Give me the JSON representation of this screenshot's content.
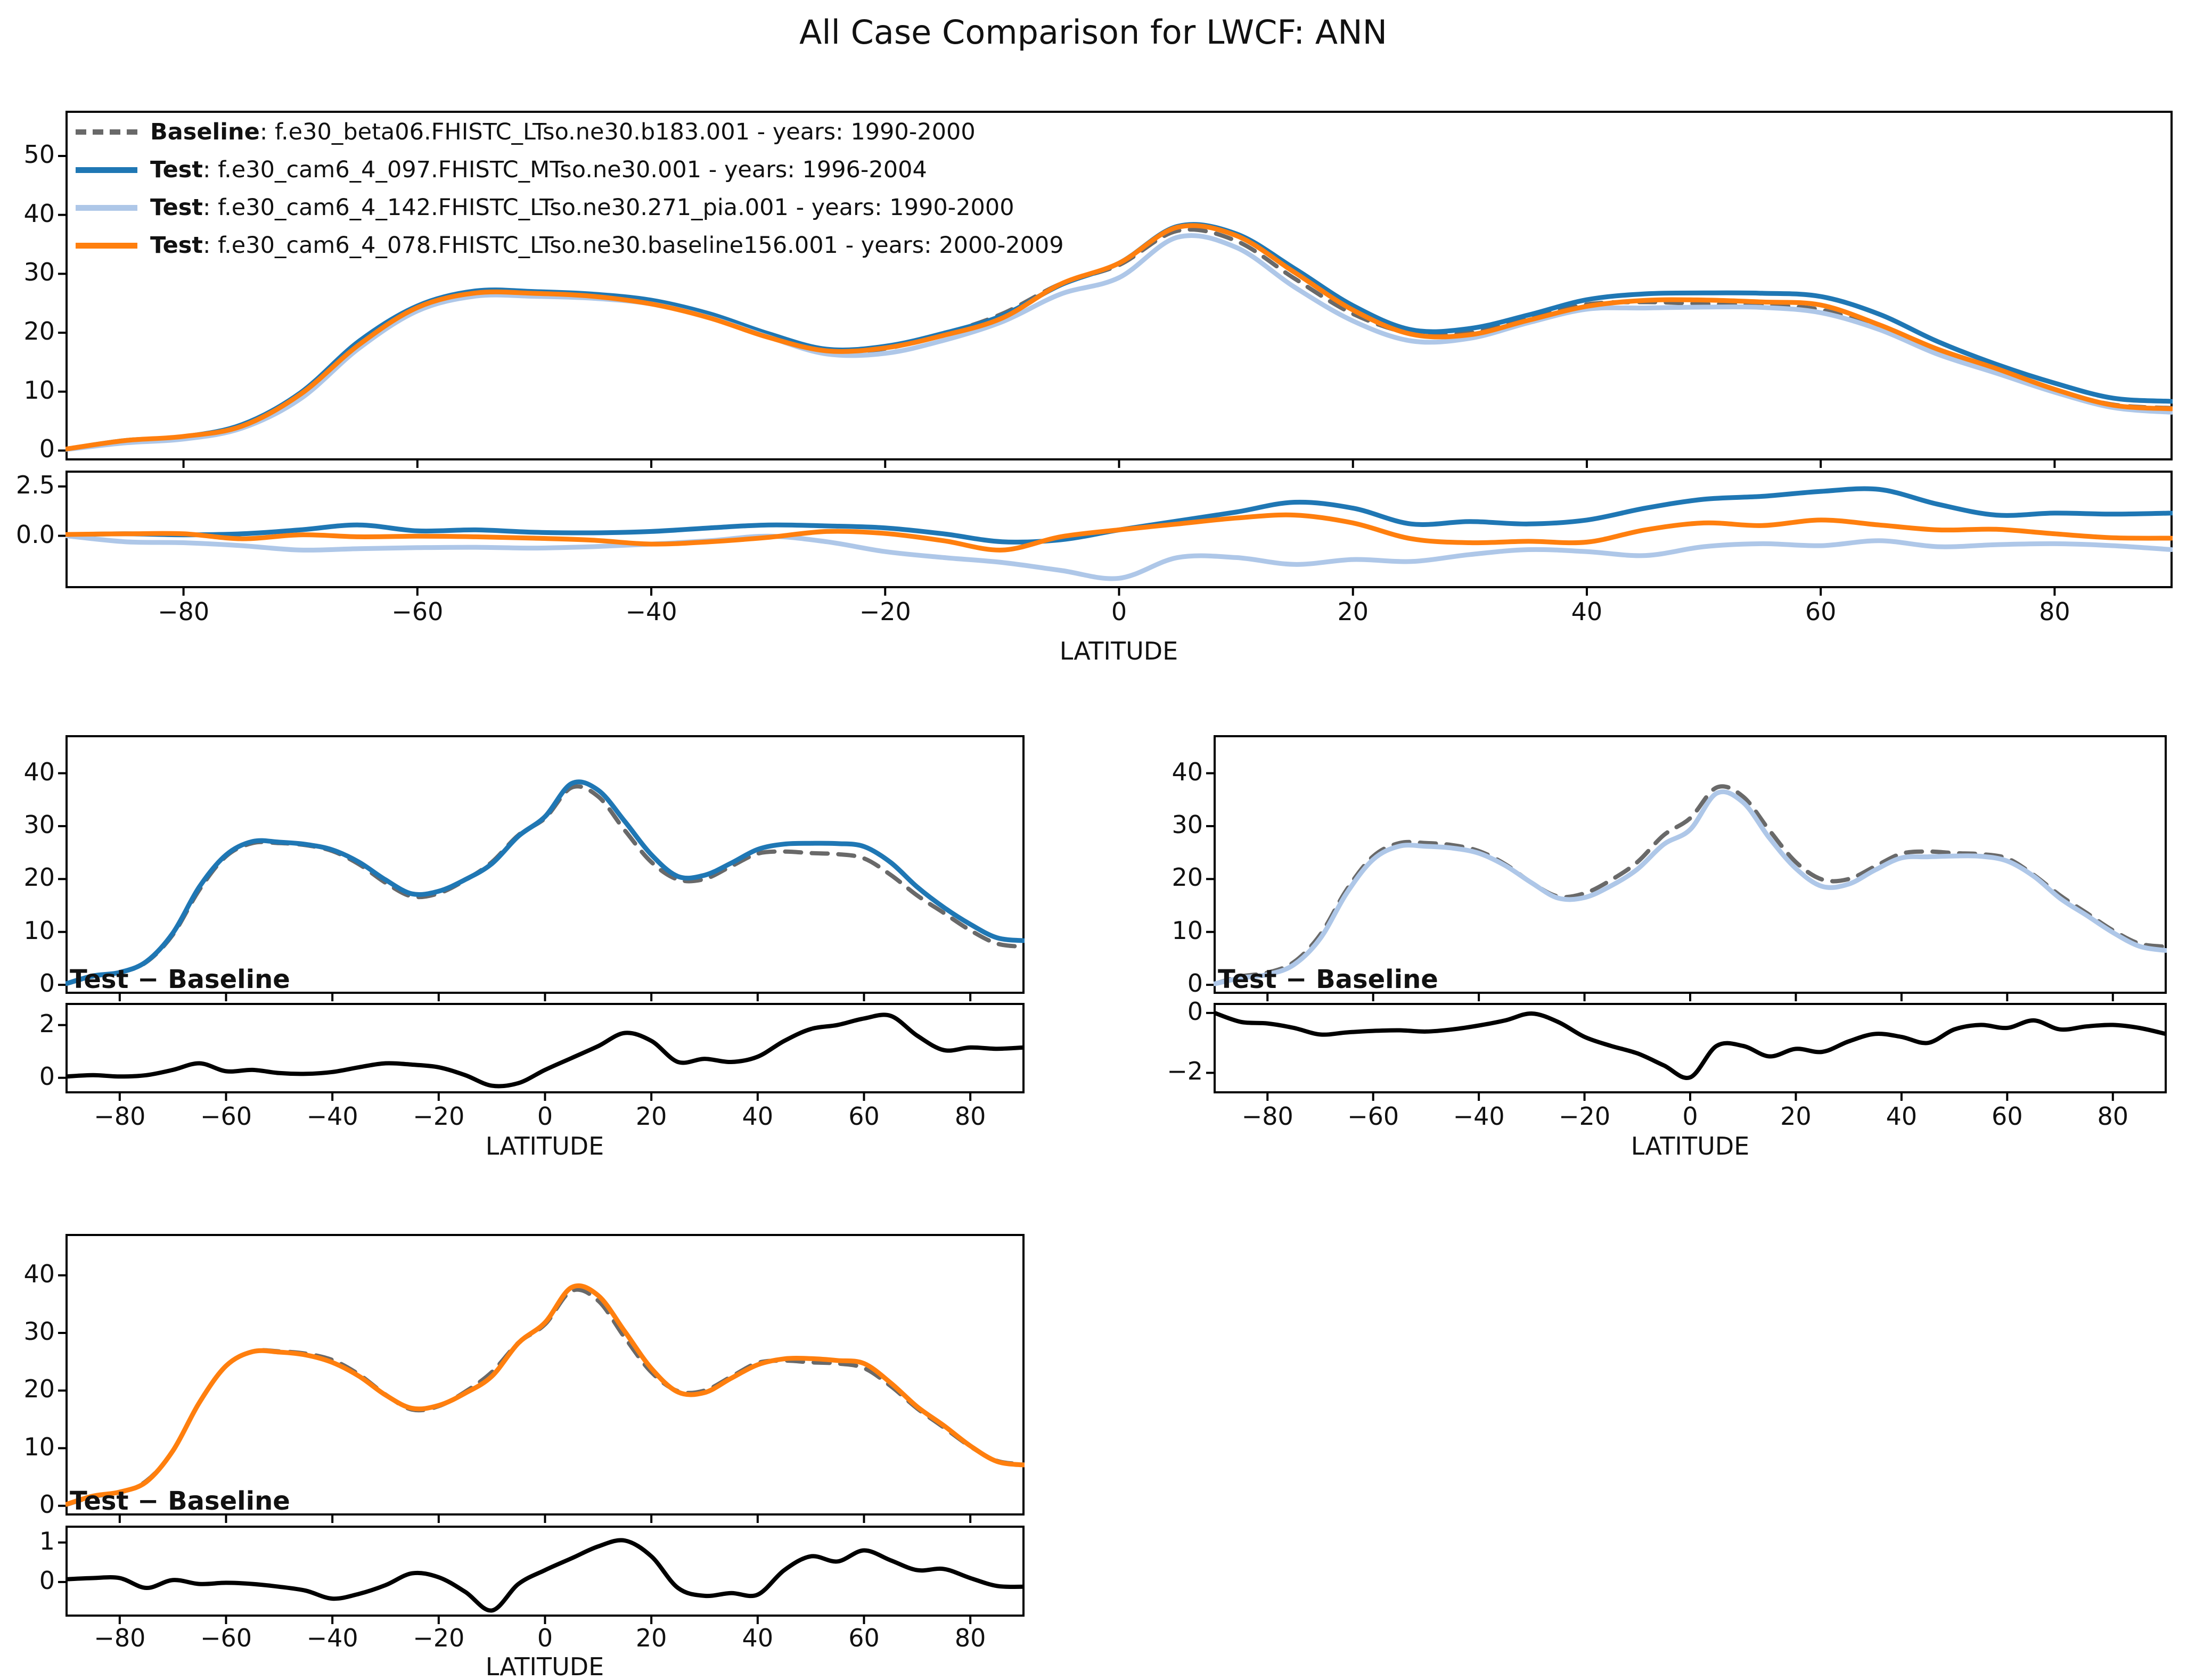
{
  "title": "All Case Comparison for LWCF: ANN",
  "axis": {
    "xlabel": "LATITUDE"
  },
  "diff_label": "Test − Baseline",
  "colors": {
    "baseline": "#696969",
    "test1": "#1f77b4",
    "test2": "#aec7e8",
    "test3": "#ff7f0e",
    "diff_black": "#000000"
  },
  "legend": {
    "items": [
      {
        "series": "baseline",
        "bold": "Baseline",
        "text": ": f.e30_beta06.FHISTC_LTso.ne30.b183.001 - years: 1990-2000",
        "style": "dashed"
      },
      {
        "series": "test1",
        "bold": "Test",
        "text": ": f.e30_cam6_4_097.FHISTC_MTso.ne30.001 - years: 1996-2004",
        "style": "solid"
      },
      {
        "series": "test2",
        "bold": "Test",
        "text": ": f.e30_cam6_4_142.FHISTC_LTso.ne30.271_pia.001 - years: 1990-2000",
        "style": "solid"
      },
      {
        "series": "test3",
        "bold": "Test",
        "text": ": f.e30_cam6_4_078.FHISTC_LTso.ne30.baseline156.001 - years: 2000-2009",
        "style": "solid"
      }
    ]
  },
  "chart_data": {
    "type": "line",
    "title": "All Case Comparison for LWCF: ANN",
    "xlabel": "LATITUDE",
    "xlim": [
      -90,
      90
    ],
    "xticks": [
      -80,
      -60,
      -40,
      -20,
      0,
      20,
      40,
      60,
      80
    ],
    "xtick_labels": [
      "−80",
      "−60",
      "−40",
      "−20",
      "0",
      "20",
      "40",
      "60",
      "80"
    ],
    "x": [
      -90,
      -85,
      -80,
      -75,
      -70,
      -65,
      -60,
      -55,
      -50,
      -45,
      -40,
      -35,
      -30,
      -25,
      -20,
      -15,
      -10,
      -5,
      0,
      5,
      10,
      15,
      20,
      25,
      30,
      35,
      40,
      45,
      50,
      55,
      60,
      65,
      70,
      75,
      80,
      85,
      90
    ],
    "series": {
      "baseline": {
        "label": "Baseline: f.e30_beta06.FHISTC_LTso.ne30.b183.001 - years: 1990-2000",
        "color": "#696969",
        "dash": true,
        "values": [
          0.2,
          1.6,
          2.3,
          4.3,
          9.5,
          18.0,
          24.3,
          26.8,
          26.8,
          26.4,
          25.3,
          22.8,
          19.3,
          16.7,
          17.3,
          19.8,
          23.2,
          28.3,
          31.5,
          37.3,
          35.6,
          29.2,
          23.2,
          19.9,
          20.0,
          22.4,
          24.8,
          25.2,
          24.9,
          24.7,
          23.9,
          20.8,
          16.9,
          13.6,
          10.3,
          7.8,
          7.2
        ]
      },
      "test1": {
        "label": "Test: f.e30_cam6_4_097.FHISTC_MTso.ne30.001 - years: 1996-2004",
        "color": "#1f77b4",
        "dash": false,
        "values": [
          0.25,
          1.7,
          2.35,
          4.4,
          9.8,
          18.55,
          24.55,
          27.1,
          26.98,
          26.55,
          25.52,
          23.2,
          19.85,
          17.2,
          17.7,
          19.9,
          22.9,
          28.1,
          31.8,
          38.05,
          36.8,
          30.9,
          24.6,
          20.5,
          20.72,
          23.0,
          25.6,
          26.6,
          26.75,
          26.7,
          26.15,
          23.15,
          18.5,
          14.65,
          11.45,
          8.9,
          8.35
        ]
      },
      "test2": {
        "label": "Test: f.e30_cam6_4_142.FHISTC_LTso.ne30.271_pia.001 - years: 1990-2000",
        "color": "#aec7e8",
        "dash": false,
        "values": [
          0.2,
          1.3,
          1.95,
          3.8,
          8.78,
          17.35,
          23.7,
          26.22,
          26.18,
          25.85,
          24.88,
          22.55,
          19.28,
          16.4,
          16.5,
          18.7,
          21.85,
          26.55,
          29.35,
          36.2,
          34.5,
          27.75,
          22.0,
          18.6,
          19.05,
          21.7,
          24.0,
          24.2,
          24.35,
          24.3,
          23.4,
          20.55,
          16.35,
          13.15,
          9.9,
          7.3,
          6.5
        ]
      },
      "test3": {
        "label": "Test: f.e30_cam6_4_078.FHISTC_LTso.ne30.baseline156.001 - years: 2000-2009",
        "color": "#ff7f0e",
        "dash": false,
        "values": [
          0.27,
          1.7,
          2.4,
          4.15,
          9.55,
          17.95,
          24.28,
          26.75,
          26.68,
          26.18,
          24.88,
          22.5,
          19.22,
          16.92,
          17.42,
          19.55,
          22.48,
          28.25,
          31.8,
          37.9,
          36.5,
          30.25,
          23.85,
          19.75,
          19.65,
          22.12,
          24.48,
          25.5,
          25.55,
          25.22,
          24.7,
          21.35,
          17.2,
          13.93,
          10.4,
          7.7,
          7.08
        ]
      }
    },
    "diffs": {
      "d1": {
        "label": "test1 − baseline",
        "color": "#1f77b4",
        "values": [
          0.05,
          0.1,
          0.05,
          0.1,
          0.3,
          0.55,
          0.25,
          0.3,
          0.18,
          0.15,
          0.22,
          0.4,
          0.55,
          0.5,
          0.4,
          0.1,
          -0.3,
          -0.2,
          0.3,
          0.75,
          1.2,
          1.7,
          1.4,
          0.6,
          0.72,
          0.6,
          0.8,
          1.4,
          1.85,
          2.0,
          2.25,
          2.35,
          1.6,
          1.05,
          1.15,
          1.1,
          1.15
        ]
      },
      "d2": {
        "label": "test2 − baseline",
        "color": "#aec7e8",
        "values": [
          0.0,
          -0.3,
          -0.35,
          -0.5,
          -0.72,
          -0.65,
          -0.6,
          -0.58,
          -0.62,
          -0.55,
          -0.42,
          -0.25,
          -0.02,
          -0.3,
          -0.8,
          -1.1,
          -1.35,
          -1.75,
          -2.15,
          -1.1,
          -1.1,
          -1.45,
          -1.2,
          -1.3,
          -0.95,
          -0.7,
          -0.8,
          -1.0,
          -0.55,
          -0.4,
          -0.5,
          -0.25,
          -0.55,
          -0.45,
          -0.4,
          -0.5,
          -0.7
        ]
      },
      "d3": {
        "label": "test3 − baseline",
        "color": "#ff7f0e",
        "values": [
          0.07,
          0.1,
          0.1,
          -0.15,
          0.05,
          -0.05,
          -0.02,
          -0.05,
          -0.12,
          -0.22,
          -0.42,
          -0.3,
          -0.08,
          0.22,
          0.12,
          -0.25,
          -0.72,
          -0.05,
          0.3,
          0.6,
          0.9,
          1.05,
          0.65,
          -0.15,
          -0.35,
          -0.28,
          -0.32,
          0.3,
          0.65,
          0.52,
          0.8,
          0.55,
          0.3,
          0.33,
          0.1,
          -0.1,
          -0.12
        ]
      }
    },
    "panels": [
      {
        "name": "all-cases",
        "series": [
          "baseline",
          "test1",
          "test2",
          "test3"
        ],
        "ylim": [
          -1.5,
          57.5
        ],
        "yticks": [
          0,
          10,
          20,
          30,
          40,
          50
        ],
        "ytick_labels": [
          "0",
          "10",
          "20",
          "30",
          "40",
          "50"
        ],
        "diff": {
          "series": [
            "d1",
            "d2",
            "d3"
          ],
          "black": false,
          "ylim": [
            -2.6,
            3.25
          ],
          "yticks": [
            2.5,
            0
          ],
          "ytick_labels": [
            "2.5",
            "0.0"
          ]
        }
      },
      {
        "name": "test1-vs-baseline",
        "series": [
          "baseline",
          "test1"
        ],
        "ylim": [
          -1.5,
          47
        ],
        "yticks": [
          0,
          10,
          20,
          30,
          40
        ],
        "ytick_labels": [
          "0",
          "10",
          "20",
          "30",
          "40"
        ],
        "diff": {
          "series": [
            "d1"
          ],
          "black": true,
          "ylim": [
            -0.55,
            2.8
          ],
          "yticks": [
            2,
            0
          ],
          "ytick_labels": [
            "2",
            "0"
          ]
        }
      },
      {
        "name": "test2-vs-baseline",
        "series": [
          "baseline",
          "test2"
        ],
        "ylim": [
          -1.5,
          47
        ],
        "yticks": [
          0,
          10,
          20,
          30,
          40
        ],
        "ytick_labels": [
          "0",
          "10",
          "20",
          "30",
          "40"
        ],
        "diff": {
          "series": [
            "d2"
          ],
          "black": true,
          "ylim": [
            -2.65,
            0.3
          ],
          "yticks": [
            0,
            -2
          ],
          "ytick_labels": [
            "0",
            "−2"
          ]
        }
      },
      {
        "name": "test3-vs-baseline",
        "series": [
          "baseline",
          "test3"
        ],
        "ylim": [
          -1.5,
          47
        ],
        "yticks": [
          0,
          10,
          20,
          30,
          40
        ],
        "ytick_labels": [
          "0",
          "10",
          "20",
          "30",
          "40"
        ],
        "diff": {
          "series": [
            "d3"
          ],
          "black": true,
          "ylim": [
            -0.85,
            1.4
          ],
          "yticks": [
            1,
            0
          ],
          "ytick_labels": [
            "1",
            "0"
          ]
        }
      }
    ],
    "legend_position": "upper left",
    "grid": false
  }
}
